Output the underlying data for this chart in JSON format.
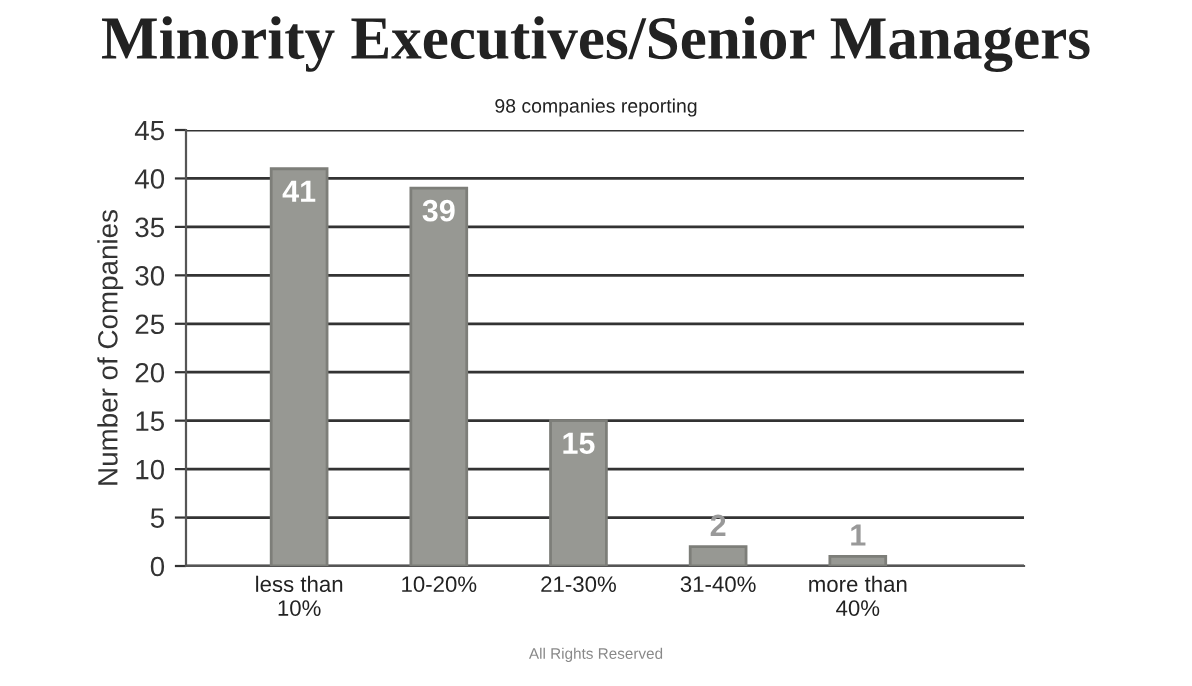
{
  "chart_data": {
    "type": "bar",
    "title": "Minority Executives/Senior Managers",
    "subtitle": "98 companies reporting",
    "ylabel": "Number of Companies",
    "categories": [
      "less than\n10%",
      "10-20%",
      "21-30%",
      "31-40%",
      "more than\n40%"
    ],
    "values": [
      41,
      39,
      15,
      2,
      1
    ],
    "color": "#979893",
    "ylim": [
      0,
      45
    ],
    "yticks": [
      0,
      5,
      10,
      15,
      20,
      25,
      30,
      35,
      40,
      45
    ],
    "grid": "y",
    "data_labels": true,
    "annotations": [
      "All Rights Reserved"
    ]
  }
}
